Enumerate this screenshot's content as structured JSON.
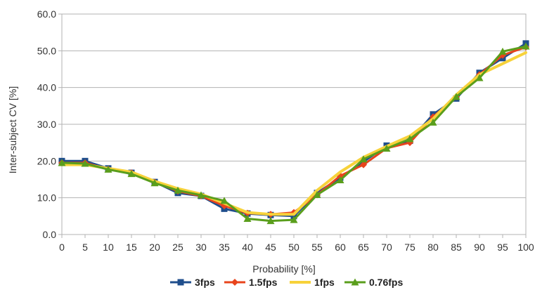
{
  "chart_data": {
    "type": "line",
    "title": "",
    "xlabel": "Probability [%]",
    "ylabel": "Inter-subject CV [%]",
    "x": [
      0,
      5,
      10,
      15,
      20,
      25,
      30,
      35,
      40,
      45,
      50,
      55,
      60,
      65,
      70,
      75,
      80,
      85,
      90,
      95,
      100
    ],
    "xlim": [
      0,
      100
    ],
    "ylim": [
      0,
      60
    ],
    "yticks": [
      0,
      10,
      20,
      30,
      40,
      50,
      60
    ],
    "ytick_labels": [
      "0.0",
      "10.0",
      "20.0",
      "30.0",
      "40.0",
      "50.0",
      "60.0"
    ],
    "xtick_labels": [
      "0",
      "5",
      "10",
      "15",
      "20",
      "25",
      "30",
      "35",
      "40",
      "45",
      "50",
      "55",
      "60",
      "65",
      "70",
      "75",
      "80",
      "85",
      "90",
      "95",
      "100"
    ],
    "grid": true,
    "legend_position": "bottom",
    "series": [
      {
        "name": "3fps",
        "color": "#1f4e8c",
        "marker": "square",
        "values": [
          20.0,
          20.0,
          18.0,
          16.8,
          14.3,
          11.3,
          10.5,
          7.0,
          5.7,
          5.3,
          5.0,
          11.3,
          15.5,
          19.8,
          24.2,
          25.5,
          32.7,
          37.0,
          44.0,
          48.0,
          52.0
        ]
      },
      {
        "name": "1.5fps",
        "color": "#e8441c",
        "marker": "diamond",
        "values": [
          19.5,
          19.5,
          17.8,
          16.8,
          14.2,
          11.8,
          10.5,
          7.8,
          5.8,
          5.5,
          6.0,
          10.8,
          16.0,
          19.0,
          23.5,
          25.0,
          32.0,
          37.5,
          43.5,
          48.8,
          51.0
        ]
      },
      {
        "name": "1fps",
        "color": "#f7d23a",
        "marker": "none",
        "values": [
          19.0,
          19.0,
          18.0,
          17.0,
          14.5,
          12.5,
          11.0,
          8.5,
          6.0,
          5.5,
          5.5,
          12.0,
          17.0,
          21.0,
          24.0,
          26.8,
          31.5,
          38.0,
          43.5,
          46.5,
          49.5
        ]
      },
      {
        "name": "0.76fps",
        "color": "#5a9e1c",
        "marker": "triangle",
        "values": [
          19.5,
          19.3,
          17.7,
          16.5,
          14.0,
          12.0,
          10.7,
          9.2,
          4.3,
          3.7,
          4.0,
          10.8,
          14.8,
          20.5,
          23.4,
          26.0,
          30.5,
          37.5,
          42.6,
          49.8,
          51.2
        ]
      }
    ]
  }
}
